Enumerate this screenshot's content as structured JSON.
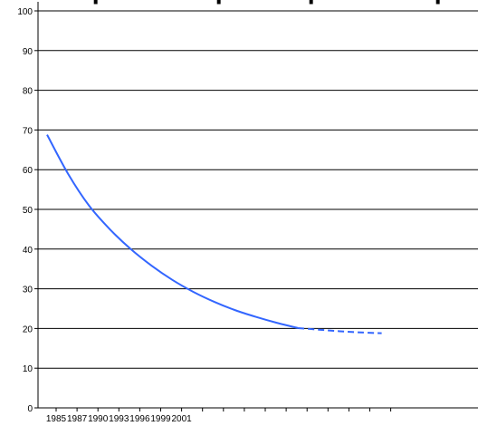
{
  "chart_data": {
    "type": "line",
    "title": "",
    "xlabel": "",
    "ylabel": "",
    "ylim": [
      0,
      100
    ],
    "y_ticks": [
      0,
      10,
      20,
      30,
      40,
      50,
      60,
      70,
      80,
      90,
      100
    ],
    "x_tick_labels": [
      "1985",
      "1987",
      "1990",
      "1993",
      "1996",
      "1999",
      "2001"
    ],
    "x_tick_count": 17,
    "grid": true,
    "legend": "none",
    "colors": {
      "line": "#3366ff",
      "grid": "#000000",
      "axis": "#000000"
    },
    "series": [
      {
        "style": "solid",
        "points": [
          [
            0,
            68.8
          ],
          [
            1,
            59.0
          ],
          [
            2,
            51.0
          ],
          [
            3,
            45.0
          ],
          [
            4,
            40.0
          ],
          [
            5,
            35.8
          ],
          [
            6,
            32.2
          ],
          [
            7,
            29.2
          ],
          [
            8,
            26.7
          ],
          [
            9,
            24.6
          ],
          [
            10,
            22.9
          ],
          [
            11,
            21.4
          ],
          [
            12,
            20.1
          ]
        ]
      },
      {
        "style": "dashed",
        "points": [
          [
            12,
            20.1
          ],
          [
            13,
            19.7
          ],
          [
            14,
            19.3
          ],
          [
            15,
            19.0
          ],
          [
            16,
            18.8
          ]
        ]
      }
    ]
  }
}
